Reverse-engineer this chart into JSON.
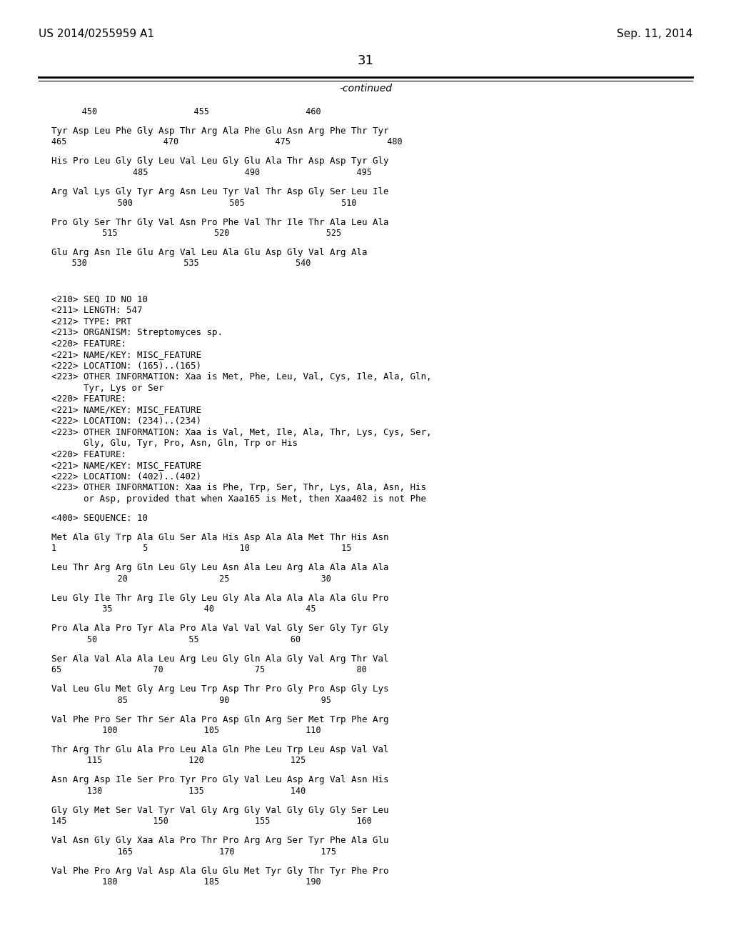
{
  "header_left": "US 2014/0255959 A1",
  "header_right": "Sep. 11, 2014",
  "page_number": "31",
  "continued_text": "-continued",
  "background_color": "#ffffff",
  "text_color": "#000000",
  "content_lines": [
    {
      "type": "numbering",
      "text": "      450                   455                   460"
    },
    {
      "type": "blank"
    },
    {
      "type": "sequence",
      "text": "Tyr Asp Leu Phe Gly Asp Thr Arg Ala Phe Glu Asn Arg Phe Thr Tyr"
    },
    {
      "type": "numbering",
      "text": "465                   470                   475                   480"
    },
    {
      "type": "blank"
    },
    {
      "type": "sequence",
      "text": "His Pro Leu Gly Gly Leu Val Leu Gly Glu Ala Thr Asp Asp Tyr Gly"
    },
    {
      "type": "numbering",
      "text": "                485                   490                   495"
    },
    {
      "type": "blank"
    },
    {
      "type": "sequence",
      "text": "Arg Val Lys Gly Tyr Arg Asn Leu Tyr Val Thr Asp Gly Ser Leu Ile"
    },
    {
      "type": "numbering",
      "text": "             500                   505                   510"
    },
    {
      "type": "blank"
    },
    {
      "type": "sequence",
      "text": "Pro Gly Ser Thr Gly Val Asn Pro Phe Val Thr Ile Thr Ala Leu Ala"
    },
    {
      "type": "numbering",
      "text": "          515                   520                   525"
    },
    {
      "type": "blank"
    },
    {
      "type": "sequence",
      "text": "Glu Arg Asn Ile Glu Arg Val Leu Ala Glu Asp Gly Val Arg Ala"
    },
    {
      "type": "numbering",
      "text": "    530                   535                   540"
    },
    {
      "type": "blank"
    },
    {
      "type": "blank"
    },
    {
      "type": "blank"
    },
    {
      "type": "meta",
      "text": "<210> SEQ ID NO 10"
    },
    {
      "type": "meta",
      "text": "<211> LENGTH: 547"
    },
    {
      "type": "meta",
      "text": "<212> TYPE: PRT"
    },
    {
      "type": "meta",
      "text": "<213> ORGANISM: Streptomyces sp."
    },
    {
      "type": "meta",
      "text": "<220> FEATURE:"
    },
    {
      "type": "meta",
      "text": "<221> NAME/KEY: MISC_FEATURE"
    },
    {
      "type": "meta",
      "text": "<222> LOCATION: (165)..(165)"
    },
    {
      "type": "meta",
      "text": "<223> OTHER INFORMATION: Xaa is Met, Phe, Leu, Val, Cys, Ile, Ala, Gln,"
    },
    {
      "type": "meta",
      "text": "      Tyr, Lys or Ser"
    },
    {
      "type": "meta",
      "text": "<220> FEATURE:"
    },
    {
      "type": "meta",
      "text": "<221> NAME/KEY: MISC_FEATURE"
    },
    {
      "type": "meta",
      "text": "<222> LOCATION: (234)..(234)"
    },
    {
      "type": "meta",
      "text": "<223> OTHER INFORMATION: Xaa is Val, Met, Ile, Ala, Thr, Lys, Cys, Ser,"
    },
    {
      "type": "meta",
      "text": "      Gly, Glu, Tyr, Pro, Asn, Gln, Trp or His"
    },
    {
      "type": "meta",
      "text": "<220> FEATURE:"
    },
    {
      "type": "meta",
      "text": "<221> NAME/KEY: MISC_FEATURE"
    },
    {
      "type": "meta",
      "text": "<222> LOCATION: (402)..(402)"
    },
    {
      "type": "meta",
      "text": "<223> OTHER INFORMATION: Xaa is Phe, Trp, Ser, Thr, Lys, Ala, Asn, His"
    },
    {
      "type": "meta",
      "text": "      or Asp, provided that when Xaa165 is Met, then Xaa402 is not Phe"
    },
    {
      "type": "blank"
    },
    {
      "type": "meta",
      "text": "<400> SEQUENCE: 10"
    },
    {
      "type": "blank"
    },
    {
      "type": "sequence",
      "text": "Met Ala Gly Trp Ala Glu Ser Ala His Asp Ala Ala Met Thr His Asn"
    },
    {
      "type": "numbering",
      "text": "1                 5                  10                  15"
    },
    {
      "type": "blank"
    },
    {
      "type": "sequence",
      "text": "Leu Thr Arg Arg Gln Leu Gly Leu Asn Ala Leu Arg Ala Ala Ala Ala"
    },
    {
      "type": "numbering",
      "text": "             20                  25                  30"
    },
    {
      "type": "blank"
    },
    {
      "type": "sequence",
      "text": "Leu Gly Ile Thr Arg Ile Gly Leu Gly Ala Ala Ala Ala Ala Glu Pro"
    },
    {
      "type": "numbering",
      "text": "          35                  40                  45"
    },
    {
      "type": "blank"
    },
    {
      "type": "sequence",
      "text": "Pro Ala Ala Pro Tyr Ala Pro Ala Val Val Val Gly Ser Gly Tyr Gly"
    },
    {
      "type": "numbering",
      "text": "       50                  55                  60"
    },
    {
      "type": "blank"
    },
    {
      "type": "sequence",
      "text": "Ser Ala Val Ala Ala Leu Arg Leu Gly Gln Ala Gly Val Arg Thr Val"
    },
    {
      "type": "numbering",
      "text": "65                  70                  75                  80"
    },
    {
      "type": "blank"
    },
    {
      "type": "sequence",
      "text": "Val Leu Glu Met Gly Arg Leu Trp Asp Thr Pro Gly Pro Asp Gly Lys"
    },
    {
      "type": "numbering",
      "text": "             85                  90                  95"
    },
    {
      "type": "blank"
    },
    {
      "type": "sequence",
      "text": "Val Phe Pro Ser Thr Ser Ala Pro Asp Gln Arg Ser Met Trp Phe Arg"
    },
    {
      "type": "numbering",
      "text": "          100                 105                 110"
    },
    {
      "type": "blank"
    },
    {
      "type": "sequence",
      "text": "Thr Arg Thr Glu Ala Pro Leu Ala Gln Phe Leu Trp Leu Asp Val Val"
    },
    {
      "type": "numbering",
      "text": "       115                 120                 125"
    },
    {
      "type": "blank"
    },
    {
      "type": "sequence",
      "text": "Asn Arg Asp Ile Ser Pro Tyr Pro Gly Val Leu Asp Arg Val Asn His"
    },
    {
      "type": "numbering",
      "text": "       130                 135                 140"
    },
    {
      "type": "blank"
    },
    {
      "type": "sequence",
      "text": "Gly Gly Met Ser Val Tyr Val Gly Arg Gly Val Gly Gly Gly Ser Leu"
    },
    {
      "type": "numbering",
      "text": "145                 150                 155                 160"
    },
    {
      "type": "blank"
    },
    {
      "type": "sequence",
      "text": "Val Asn Gly Gly Xaa Ala Pro Thr Pro Arg Arg Ser Tyr Phe Ala Glu"
    },
    {
      "type": "numbering",
      "text": "             165                 170                 175"
    },
    {
      "type": "blank"
    },
    {
      "type": "sequence",
      "text": "Val Phe Pro Arg Val Asp Ala Glu Glu Met Tyr Gly Thr Tyr Phe Pro"
    },
    {
      "type": "numbering",
      "text": "          180                 185                 190"
    }
  ]
}
